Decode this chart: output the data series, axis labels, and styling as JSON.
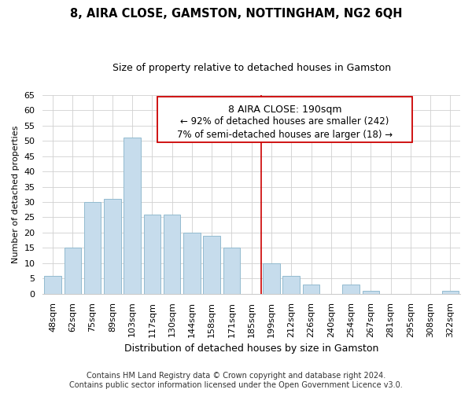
{
  "title": "8, AIRA CLOSE, GAMSTON, NOTTINGHAM, NG2 6QH",
  "subtitle": "Size of property relative to detached houses in Gamston",
  "xlabel": "Distribution of detached houses by size in Gamston",
  "ylabel": "Number of detached properties",
  "footer_line1": "Contains HM Land Registry data © Crown copyright and database right 2024.",
  "footer_line2": "Contains public sector information licensed under the Open Government Licence v3.0.",
  "bar_labels": [
    "48sqm",
    "62sqm",
    "75sqm",
    "89sqm",
    "103sqm",
    "117sqm",
    "130sqm",
    "144sqm",
    "158sqm",
    "171sqm",
    "185sqm",
    "199sqm",
    "212sqm",
    "226sqm",
    "240sqm",
    "254sqm",
    "267sqm",
    "281sqm",
    "295sqm",
    "308sqm",
    "322sqm"
  ],
  "bar_values": [
    6,
    15,
    30,
    31,
    51,
    26,
    26,
    20,
    19,
    15,
    0,
    10,
    6,
    3,
    0,
    3,
    1,
    0,
    0,
    0,
    1
  ],
  "bar_color": "#c6dcec",
  "bar_edge_color": "#93bbcf",
  "vline_color": "#cc0000",
  "vline_x_idx": 10.5,
  "annotation_title": "8 AIRA CLOSE: 190sqm",
  "annotation_line1": "← 92% of detached houses are smaller (242)",
  "annotation_line2": "7% of semi-detached houses are larger (18) →",
  "ylim": [
    0,
    65
  ],
  "yticks": [
    0,
    5,
    10,
    15,
    20,
    25,
    30,
    35,
    40,
    45,
    50,
    55,
    60,
    65
  ],
  "title_fontsize": 10.5,
  "subtitle_fontsize": 9,
  "ylabel_fontsize": 8,
  "xlabel_fontsize": 9,
  "tick_fontsize": 8,
  "footer_fontsize": 7,
  "ann_title_fontsize": 9,
  "ann_text_fontsize": 8.5
}
